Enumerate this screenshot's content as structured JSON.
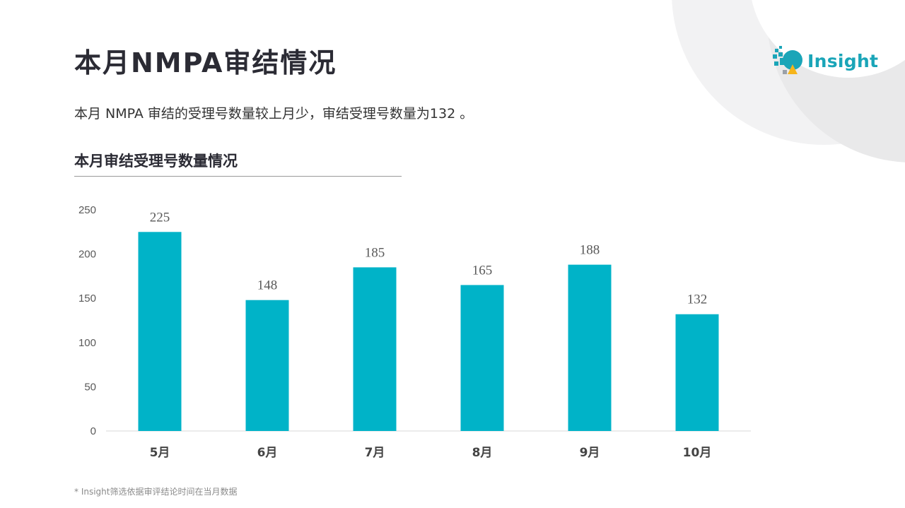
{
  "header": {
    "title": "本月NMPA审结情况",
    "summary": "本月 NMPA 审结的受理号数量较上月少，审结受理号数量为132 。",
    "section_title": "本月审结受理号数量情况"
  },
  "logo": {
    "text": "Insight"
  },
  "colors": {
    "bar": "#00b3c8",
    "accent": "#1aa5b8"
  },
  "chart_data": {
    "type": "bar",
    "title": "本月审结受理号数量情况",
    "categories": [
      "5月",
      "6月",
      "7月",
      "8月",
      "9月",
      "10月"
    ],
    "values": [
      225,
      148,
      185,
      165,
      188,
      132
    ],
    "data_labels": [
      "225",
      "148",
      "185",
      "165",
      "188",
      "132"
    ],
    "ylim": [
      0,
      250
    ],
    "y_ticks": [
      0,
      50,
      100,
      150,
      200,
      250
    ],
    "y_tick_labels": [
      "0",
      "50",
      "100",
      "150",
      "200",
      "250"
    ],
    "xlabel": "",
    "ylabel": "",
    "grid": false,
    "legend": "none"
  },
  "footnote": "* Insight筛选依据审评结论时间在当月数据"
}
